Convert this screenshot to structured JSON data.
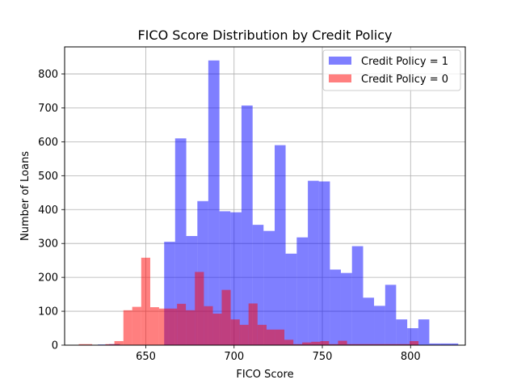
{
  "chart_data": {
    "type": "histogram",
    "title": "FICO Score Distribution by Credit Policy",
    "xlabel": "FICO Score",
    "ylabel": "Number of Loans",
    "xlim": [
      604,
      831
    ],
    "ylim": [
      0,
      880
    ],
    "xticks": [
      650,
      700,
      750,
      800
    ],
    "yticks": [
      0,
      100,
      200,
      300,
      400,
      500,
      600,
      700,
      800
    ],
    "grid": true,
    "legend_position": "top-right",
    "series": [
      {
        "name": "Credit Policy = 1",
        "color": "#0000ff",
        "opacity": 0.5,
        "bins": [
          [
            622.8,
            629.1,
            2
          ],
          [
            629.1,
            635.3,
            3
          ],
          [
            635.3,
            641.6,
            0
          ],
          [
            641.6,
            647.9,
            0
          ],
          [
            647.9,
            654.1,
            0
          ],
          [
            654.1,
            660.4,
            0
          ],
          [
            660.4,
            666.6,
            305
          ],
          [
            666.6,
            672.9,
            610
          ],
          [
            672.9,
            679.2,
            322
          ],
          [
            679.2,
            685.4,
            425
          ],
          [
            685.4,
            691.7,
            840
          ],
          [
            691.7,
            697.9,
            395
          ],
          [
            697.9,
            704.2,
            392
          ],
          [
            704.2,
            710.5,
            707
          ],
          [
            710.5,
            716.7,
            355
          ],
          [
            716.7,
            723.0,
            337
          ],
          [
            723.0,
            729.2,
            590
          ],
          [
            729.2,
            735.5,
            270
          ],
          [
            735.5,
            741.8,
            318
          ],
          [
            741.8,
            748.0,
            485
          ],
          [
            748.0,
            754.3,
            483
          ],
          [
            754.3,
            760.5,
            223
          ],
          [
            760.5,
            766.8,
            213
          ],
          [
            766.8,
            773.1,
            292
          ],
          [
            773.1,
            779.3,
            140
          ],
          [
            779.3,
            785.6,
            116
          ],
          [
            785.6,
            791.8,
            178
          ],
          [
            791.8,
            798.1,
            76
          ],
          [
            798.1,
            804.4,
            50
          ],
          [
            804.4,
            810.6,
            76
          ],
          [
            810.6,
            816.9,
            5
          ],
          [
            816.9,
            823.1,
            5
          ],
          [
            823.1,
            827.0,
            5
          ]
        ]
      },
      {
        "name": "Credit Policy = 0",
        "color": "#ff0000",
        "opacity": 0.5,
        "bins": [
          [
            612.0,
            619.6,
            3
          ],
          [
            619.6,
            627.1,
            0
          ],
          [
            627.1,
            632.2,
            3
          ],
          [
            632.2,
            637.3,
            12
          ],
          [
            637.3,
            642.3,
            103
          ],
          [
            642.3,
            647.4,
            113
          ],
          [
            647.4,
            652.5,
            258
          ],
          [
            652.5,
            657.5,
            112
          ],
          [
            657.5,
            662.6,
            108
          ],
          [
            662.6,
            667.7,
            108
          ],
          [
            667.7,
            672.7,
            122
          ],
          [
            672.7,
            677.8,
            103
          ],
          [
            677.8,
            682.9,
            216
          ],
          [
            682.9,
            688.0,
            115
          ],
          [
            688.0,
            693.0,
            93
          ],
          [
            693.0,
            698.1,
            163
          ],
          [
            698.1,
            703.2,
            76
          ],
          [
            703.2,
            708.2,
            60
          ],
          [
            708.2,
            713.3,
            123
          ],
          [
            713.3,
            718.4,
            60
          ],
          [
            718.4,
            723.4,
            46
          ],
          [
            723.4,
            728.5,
            46
          ],
          [
            728.5,
            733.6,
            16
          ],
          [
            733.6,
            738.6,
            3
          ],
          [
            738.6,
            743.7,
            8
          ],
          [
            743.7,
            748.8,
            10
          ],
          [
            748.8,
            753.8,
            12
          ],
          [
            753.8,
            758.9,
            3
          ],
          [
            758.9,
            764.0,
            13
          ],
          [
            764.0,
            769.1,
            3
          ],
          [
            769.1,
            774.1,
            3
          ],
          [
            774.1,
            779.2,
            3
          ],
          [
            779.2,
            789.3,
            3
          ],
          [
            789.3,
            794.4,
            3
          ],
          [
            794.4,
            799.5,
            3
          ],
          [
            799.5,
            804.5,
            12
          ]
        ]
      }
    ]
  }
}
